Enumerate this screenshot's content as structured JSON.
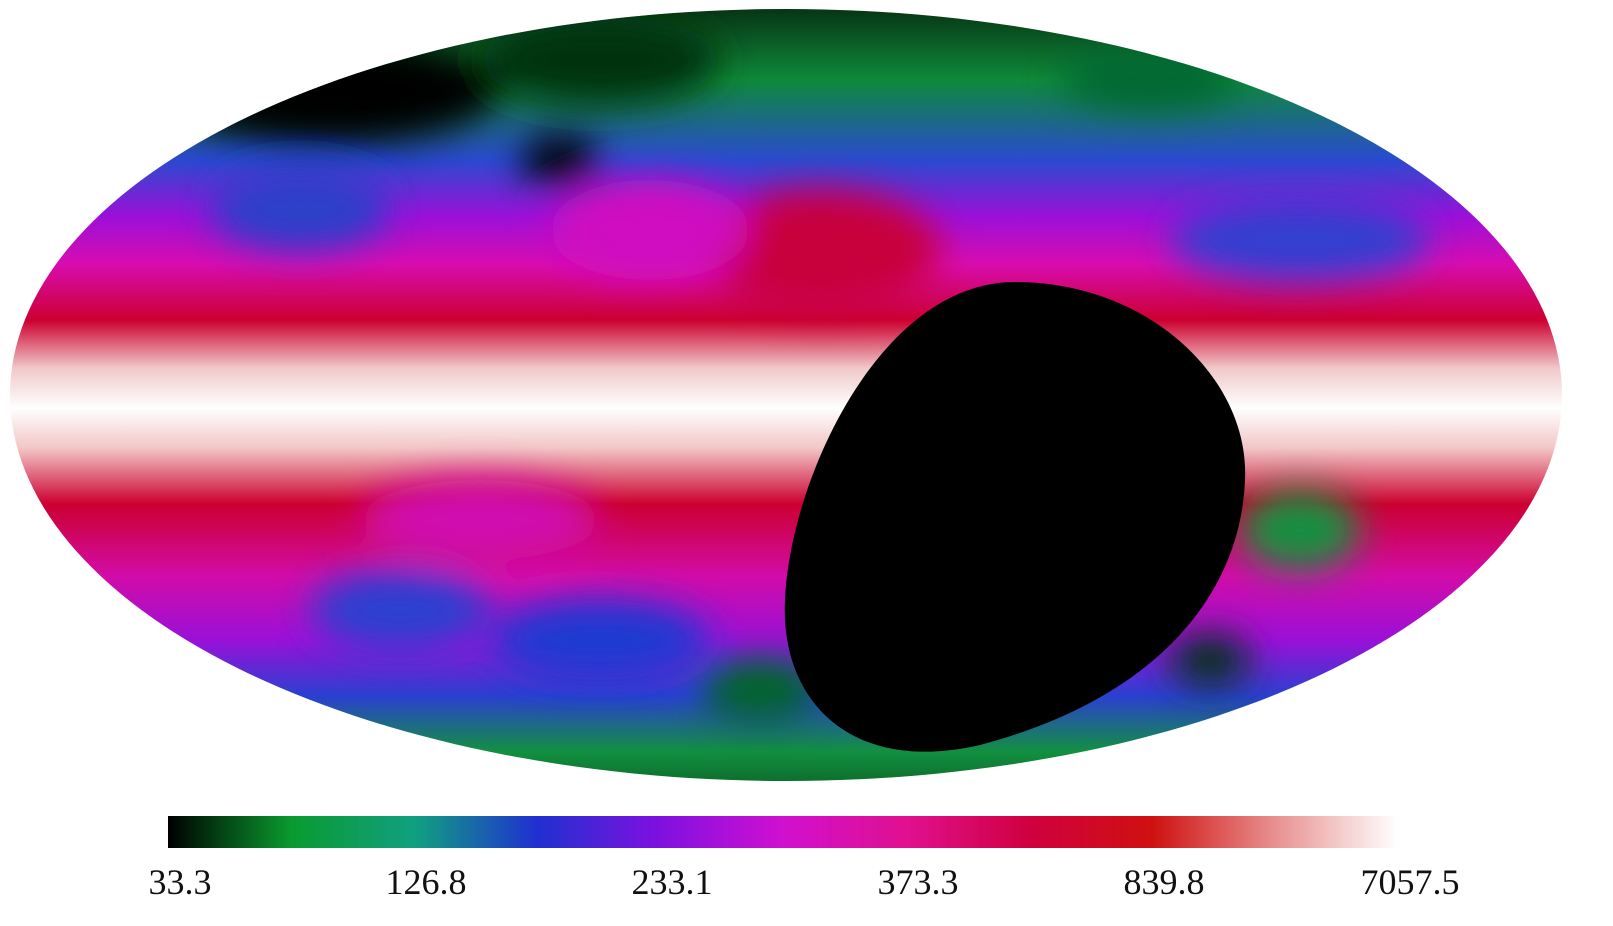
{
  "colorbar": {
    "ticks": [
      33.3,
      126.8,
      233.1,
      373.3,
      839.8,
      7057.5
    ]
  }
}
